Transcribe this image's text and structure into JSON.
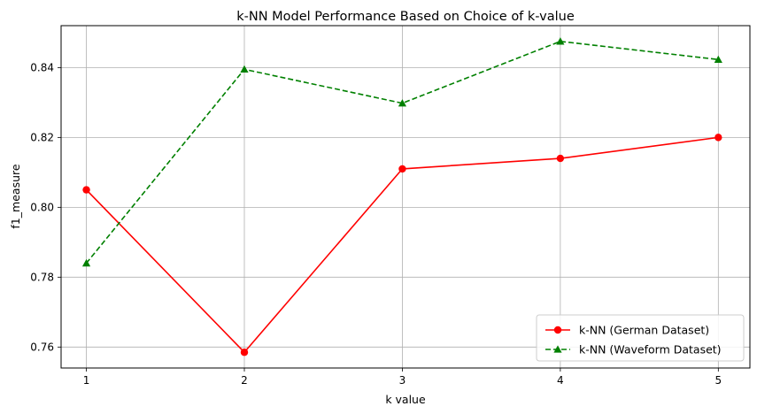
{
  "chart_data": {
    "type": "line",
    "title": "k-NN Model Performance Based on Choice of k-value",
    "xlabel": "k value",
    "ylabel": "f1_measure",
    "x": [
      1,
      2,
      3,
      4,
      5
    ],
    "xticks": [
      "1",
      "2",
      "3",
      "4",
      "5"
    ],
    "yticks": [
      "0.76",
      "0.78",
      "0.80",
      "0.82",
      "0.84"
    ],
    "xlim": [
      0.84,
      5.2
    ],
    "ylim": [
      0.754,
      0.852
    ],
    "grid": true,
    "legend_position": "lower-right",
    "series": [
      {
        "name": "k-NN (German Dataset)",
        "values": [
          0.805,
          0.7585,
          0.811,
          0.814,
          0.82
        ],
        "color": "#ff0000",
        "linestyle": "solid",
        "marker": "circle"
      },
      {
        "name": "k-NN (Waveform Dataset)",
        "values": [
          0.784,
          0.8395,
          0.8298,
          0.8475,
          0.8423
        ],
        "color": "#008000",
        "linestyle": "dashed",
        "marker": "triangle"
      }
    ]
  }
}
